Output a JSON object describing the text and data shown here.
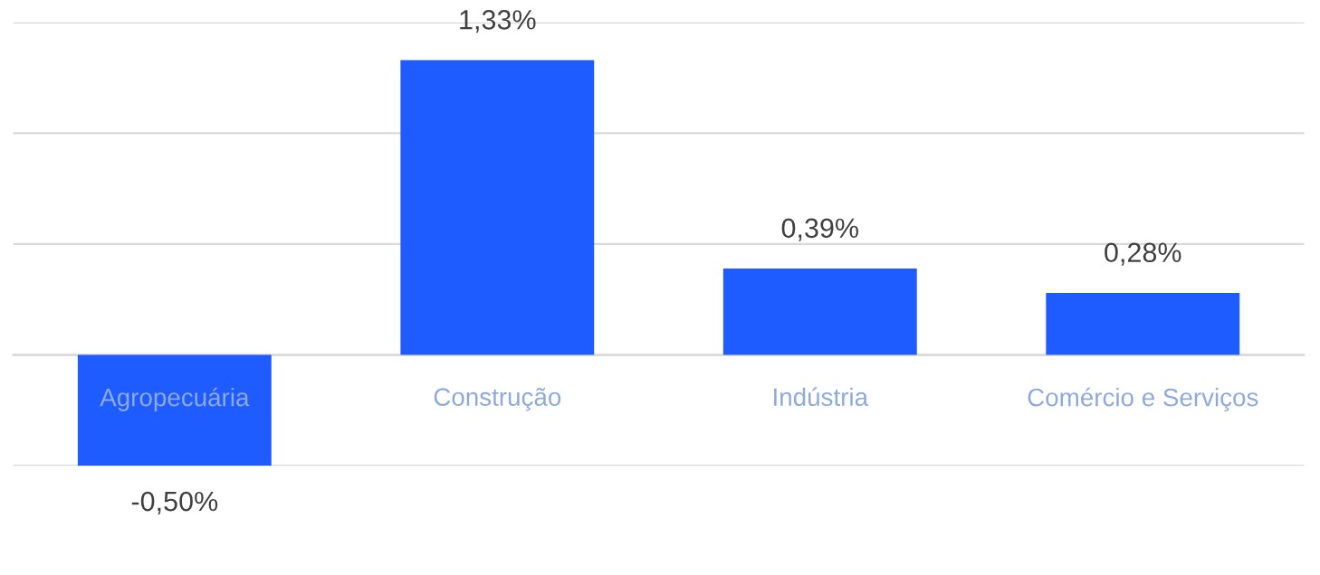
{
  "chart_data": {
    "type": "bar",
    "categories": [
      "Agropecuária",
      "Construção",
      "Indústria",
      "Comércio e Serviços"
    ],
    "values": [
      -0.5,
      1.33,
      0.39,
      0.28
    ],
    "value_labels": [
      "-0,50%",
      "1,33%",
      "0,39%",
      "0,28%"
    ],
    "color": "#1f5cff",
    "ylim": [
      -0.5,
      1.5
    ],
    "yticks": [
      {
        "value": -0.5,
        "label": null
      },
      {
        "value": 0,
        "label": null
      },
      {
        "value": 0.5,
        "label": null
      },
      {
        "value": 1.0,
        "label": null
      },
      {
        "value": 1.5,
        "label": null
      }
    ],
    "grid": "y",
    "tick_labels": "x"
  }
}
